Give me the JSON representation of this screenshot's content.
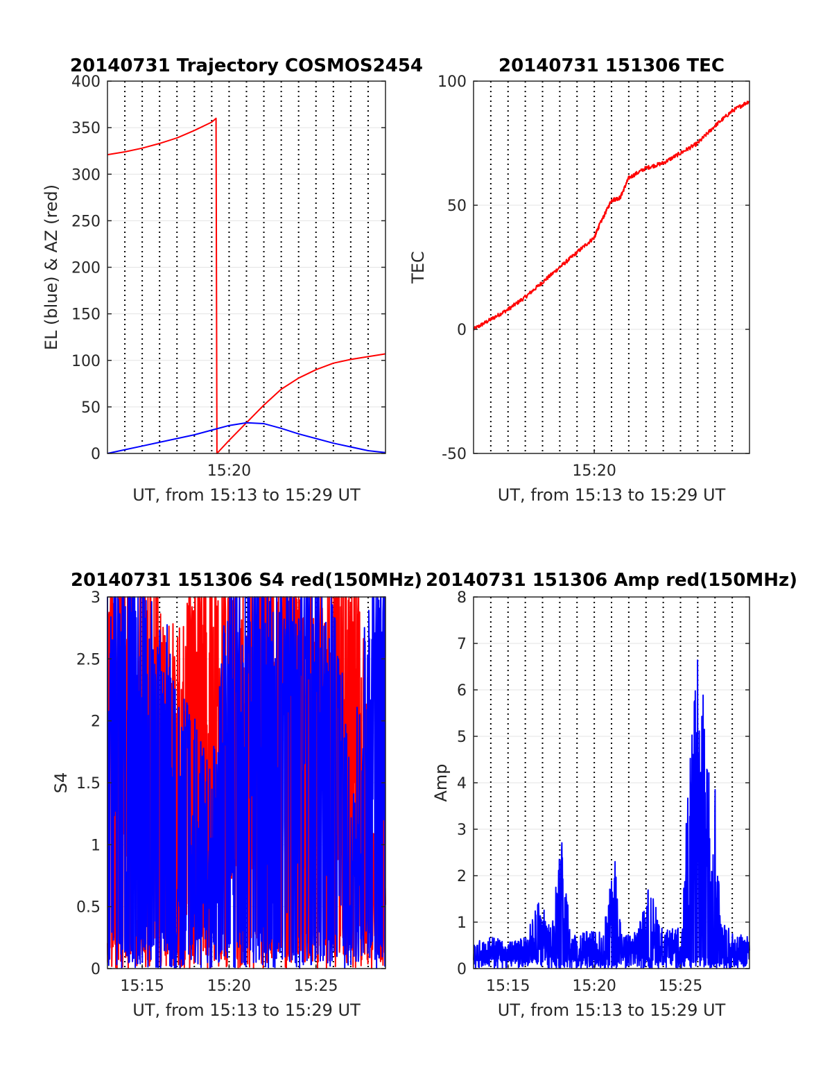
{
  "chart_data": [
    {
      "id": "trajectory",
      "type": "line",
      "title": "20140731 Trajectory COSMOS2454",
      "xlabel": "UT, from 15:13 to 15:29 UT",
      "ylabel": "EL (blue) & AZ (red)",
      "x_unit": "UT time (HH:MM)",
      "xlim": [
        "15:13.0",
        "15:29.0"
      ],
      "ylim": [
        0,
        400
      ],
      "x_ticks": [
        "15:20"
      ],
      "y_ticks": [
        "0",
        "50",
        "100",
        "150",
        "200",
        "250",
        "300",
        "350",
        "400"
      ],
      "grid": "dotted vertical every 1 min, faint horizontal",
      "series": [
        {
          "color": "#ff0000",
          "x": [
            "15:13.0",
            "15:14.0",
            "15:15.0",
            "15:16.0",
            "15:17.0",
            "15:18.0",
            "15:19.0",
            "15:19.25",
            "15:19.3",
            "15:20.0",
            "15:21.0",
            "15:22.0",
            "15:23.0",
            "15:24.0",
            "15:25.0",
            "15:26.0",
            "15:27.0",
            "15:28.0",
            "15:29.0"
          ],
          "y": [
            321,
            324,
            328,
            333,
            339,
            347,
            356,
            360,
            0,
            14,
            33,
            52,
            69,
            81,
            90,
            97,
            101,
            104,
            107
          ]
        },
        {
          "color": "#0000ff",
          "x": [
            "15:13.0",
            "15:14.0",
            "15:15.0",
            "15:16.0",
            "15:17.0",
            "15:18.0",
            "15:19.0",
            "15:20.0",
            "15:21.0",
            "15:22.0",
            "15:23.0",
            "15:24.0",
            "15:25.0",
            "15:26.0",
            "15:27.0",
            "15:28.0",
            "15:29.0"
          ],
          "y": [
            0,
            4,
            8,
            12,
            16,
            20,
            25,
            30,
            33,
            32,
            27,
            21,
            16,
            11,
            7,
            3,
            1
          ]
        }
      ]
    },
    {
      "id": "tec",
      "type": "line",
      "title": "20140731 151306 TEC",
      "xlabel": "UT, from 15:13 to 15:29 UT",
      "ylabel": "TEC",
      "x_unit": "UT time (HH:MM)",
      "xlim": [
        "15:13.0",
        "15:29.0"
      ],
      "ylim": [
        -50,
        100
      ],
      "x_ticks": [
        "15:20"
      ],
      "y_ticks": [
        "-50",
        "0",
        "50",
        "100"
      ],
      "grid": "dotted vertical every 1 min, faint horizontal",
      "series": [
        {
          "color": "#ff0000",
          "x": [
            "15:13.0",
            "15:14.0",
            "15:15.0",
            "15:16.0",
            "15:17.0",
            "15:18.0",
            "15:19.0",
            "15:20.0",
            "15:20.3",
            "15:21.0",
            "15:21.5",
            "15:22.0",
            "15:23.0",
            "15:24.0",
            "15:25.0",
            "15:26.0",
            "15:27.0",
            "15:28.0",
            "15:29.0"
          ],
          "y": [
            0,
            4,
            8,
            13,
            19,
            25,
            31,
            37,
            42,
            52,
            53,
            61,
            65,
            67,
            71,
            75,
            82,
            88,
            92
          ]
        }
      ]
    },
    {
      "id": "s4",
      "type": "line",
      "title": "20140731 151306 S4 red(150MHz)",
      "xlabel": "UT, from 15:13 to 15:29 UT",
      "ylabel": "S4",
      "x_unit": "UT time (HH:MM)",
      "xlim": [
        "15:13.0",
        "15:29.0"
      ],
      "ylim": [
        0,
        3
      ],
      "x_ticks": [
        "15:15",
        "15:20",
        "15:25"
      ],
      "y_ticks": [
        "0",
        "0.5",
        "1",
        "1.5",
        "2",
        "2.5",
        "3"
      ],
      "grid": "dotted vertical every 1 min, faint horizontal",
      "series": [
        {
          "color": "#ff0000",
          "note": "dense fluctuating trace between 0 and 3",
          "x": [
            "15:13.0",
            "15:14.0",
            "15:15.0",
            "15:16.0",
            "15:17.0",
            "15:18.0",
            "15:19.0",
            "15:20.0",
            "15:21.0",
            "15:22.0",
            "15:23.0",
            "15:24.0",
            "15:25.0",
            "15:26.0",
            "15:27.0",
            "15:28.0",
            "15:29.0"
          ],
          "y": [
            2.5,
            2.8,
            2.6,
            2.3,
            1.9,
            2.7,
            2.9,
            2.4,
            2.2,
            2.6,
            2.8,
            2.5,
            2.3,
            2.7,
            2.9,
            1.5,
            0.8
          ]
        },
        {
          "color": "#0000ff",
          "note": "dense fluctuating trace between 0 and 3",
          "x": [
            "15:13.0",
            "15:14.0",
            "15:15.0",
            "15:16.0",
            "15:17.0",
            "15:18.0",
            "15:19.0",
            "15:20.0",
            "15:21.0",
            "15:22.0",
            "15:23.0",
            "15:24.0",
            "15:25.0",
            "15:26.0",
            "15:27.0",
            "15:28.0",
            "15:29.0"
          ],
          "y": [
            2.4,
            2.7,
            2.3,
            2.2,
            1.6,
            1.2,
            0.8,
            2.5,
            2.6,
            2.8,
            2.4,
            2.3,
            2.6,
            2.5,
            0.7,
            2.4,
            2.9
          ]
        }
      ]
    },
    {
      "id": "amp",
      "type": "line",
      "title": "20140731 151306 Amp red(150MHz)",
      "xlabel": "UT, from 15:13 to 15:29 UT",
      "ylabel": "Amp",
      "x_unit": "UT time (HH:MM)",
      "xlim": [
        "15:13.0",
        "15:29.0"
      ],
      "ylim": [
        0,
        8
      ],
      "x_ticks": [
        "15:15",
        "15:20",
        "15:25"
      ],
      "y_ticks": [
        "0",
        "1",
        "2",
        "3",
        "4",
        "5",
        "6",
        "7",
        "8"
      ],
      "grid": "dotted vertical every 1 min, faint horizontal",
      "series": [
        {
          "color": "#0000ff",
          "note": "noisy trace near 0.5 with bursts",
          "x": [
            "15:13.0",
            "15:14.0",
            "15:15.0",
            "15:16.0",
            "15:16.8",
            "15:17.5",
            "15:18.2",
            "15:18.6",
            "15:19.5",
            "15:20.5",
            "15:21.2",
            "15:21.6",
            "15:22.5",
            "15:23.2",
            "15:24.0",
            "15:25.0",
            "15:25.9",
            "15:26.4",
            "15:26.9",
            "15:27.3",
            "15:28.0",
            "15:29.0"
          ],
          "y": [
            0.5,
            0.6,
            0.5,
            0.6,
            1.3,
            0.8,
            2.7,
            0.6,
            0.7,
            0.7,
            2.1,
            0.6,
            0.7,
            1.6,
            0.7,
            0.8,
            6.0,
            5.0,
            4.9,
            0.9,
            0.7,
            0.6
          ]
        }
      ]
    }
  ]
}
